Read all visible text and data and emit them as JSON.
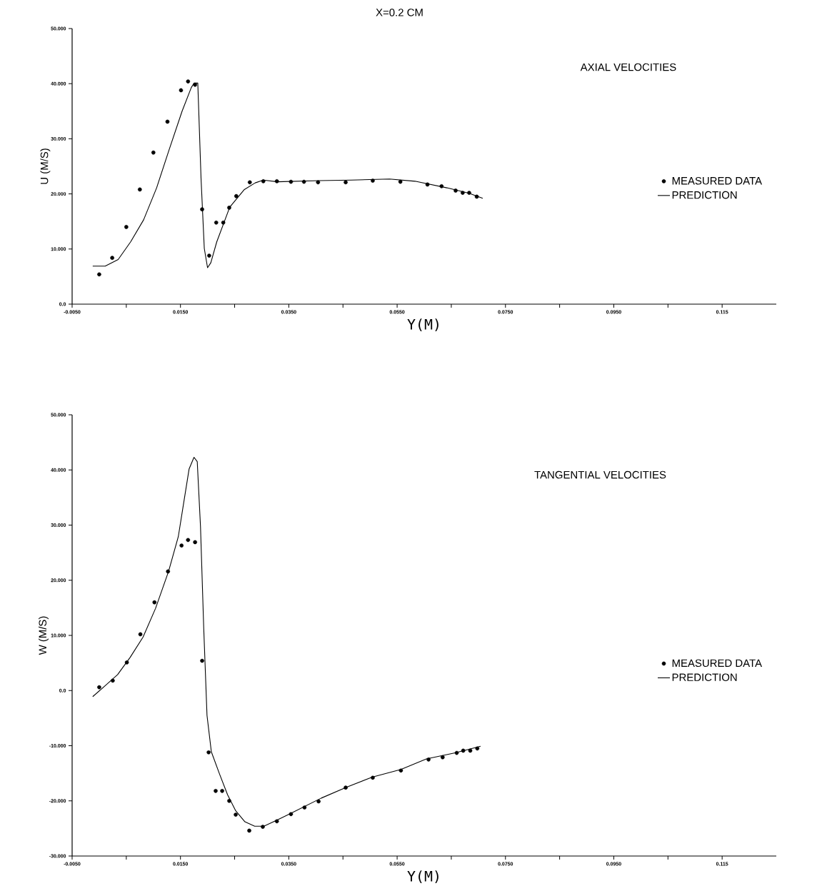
{
  "chart_data": [
    {
      "type": "line",
      "title": "X=0.2 CM",
      "xlabel": "Y(M)",
      "ylabel": "U (M/S)",
      "annotations": [
        "AXIAL VELOCITIES"
      ],
      "legend": "right",
      "xlim": [
        -0.005,
        0.125
      ],
      "ylim": [
        0,
        50
      ],
      "xticks": [
        {
          "value": -0.005,
          "label": "-0.0050"
        },
        {
          "value": 0.005,
          "label": null
        },
        {
          "value": 0.015,
          "label": "0.0150"
        },
        {
          "value": 0.025,
          "label": null
        },
        {
          "value": 0.035,
          "label": "0.0350"
        },
        {
          "value": 0.045,
          "label": null
        },
        {
          "value": 0.055,
          "label": "0.0550"
        },
        {
          "value": 0.065,
          "label": null
        },
        {
          "value": 0.075,
          "label": "0.0750"
        },
        {
          "value": 0.085,
          "label": null
        },
        {
          "value": 0.095,
          "label": "0.0950"
        },
        {
          "value": 0.105,
          "label": null
        },
        {
          "value": 0.115,
          "label": "0.115"
        }
      ],
      "yticks": [
        {
          "value": 0,
          "label": "0.0"
        },
        {
          "value": 10,
          "label": "10.000"
        },
        {
          "value": 20,
          "label": "20.000"
        },
        {
          "value": 30,
          "label": "30.000"
        },
        {
          "value": 40,
          "label": "40.000"
        },
        {
          "value": 50,
          "label": "50.000"
        }
      ],
      "series": [
        {
          "name": "MEASURED DATA",
          "type": "scatter",
          "marker": "circle",
          "color": "#000000",
          "x": [
            0.0,
            0.0024,
            0.005,
            0.0075,
            0.01,
            0.0126,
            0.0151,
            0.0164,
            0.0177,
            0.019,
            0.0203,
            0.0216,
            0.0229,
            0.024,
            0.0253,
            0.0278,
            0.0303,
            0.0328,
            0.0354,
            0.0378,
            0.0404,
            0.0455,
            0.0505,
            0.0556,
            0.0606,
            0.0632,
            0.0658,
            0.0671,
            0.0683,
            0.0697
          ],
          "values": [
            5.4,
            8.4,
            14.0,
            20.8,
            27.5,
            33.1,
            38.8,
            40.4,
            39.8,
            17.2,
            8.8,
            14.8,
            14.8,
            17.5,
            19.6,
            22.1,
            22.3,
            22.3,
            22.2,
            22.2,
            22.1,
            22.1,
            22.4,
            22.2,
            21.7,
            21.4,
            20.6,
            20.2,
            20.2,
            19.5
          ]
        },
        {
          "name": "PREDICTION",
          "type": "line",
          "color": "#000000",
          "x": [
            -0.0012,
            0.0011,
            0.0035,
            0.0058,
            0.0082,
            0.0106,
            0.0129,
            0.0153,
            0.017,
            0.0175,
            0.0182,
            0.0188,
            0.0194,
            0.02,
            0.0206,
            0.0217,
            0.0241,
            0.0268,
            0.0288,
            0.0303,
            0.0329,
            0.0406,
            0.0465,
            0.0536,
            0.0583,
            0.0642,
            0.0683,
            0.0708
          ],
          "values": [
            6.9,
            6.9,
            8.1,
            11.3,
            15.3,
            21.1,
            28.0,
            35.0,
            39.3,
            40.1,
            40.1,
            22.8,
            10.1,
            6.6,
            7.5,
            11.3,
            17.6,
            20.8,
            22.0,
            22.5,
            22.2,
            22.4,
            22.5,
            22.7,
            22.3,
            21.1,
            20.1,
            19.2
          ]
        }
      ]
    },
    {
      "type": "line",
      "xlabel": "Y(M)",
      "ylabel": "W (M/S)",
      "annotations": [
        "TANGENTIAL VELOCITIES"
      ],
      "legend": "right",
      "xlim": [
        -0.005,
        0.125
      ],
      "ylim": [
        -30,
        50
      ],
      "xticks": [
        {
          "value": -0.005,
          "label": "-0.0050"
        },
        {
          "value": 0.005,
          "label": null
        },
        {
          "value": 0.015,
          "label": "0.0150"
        },
        {
          "value": 0.025,
          "label": null
        },
        {
          "value": 0.035,
          "label": "0.0350"
        },
        {
          "value": 0.045,
          "label": null
        },
        {
          "value": 0.055,
          "label": "0.0550"
        },
        {
          "value": 0.065,
          "label": null
        },
        {
          "value": 0.075,
          "label": "0.0750"
        },
        {
          "value": 0.085,
          "label": null
        },
        {
          "value": 0.095,
          "label": "0.0950"
        },
        {
          "value": 0.105,
          "label": null
        },
        {
          "value": 0.115,
          "label": "0.115"
        }
      ],
      "yticks": [
        {
          "value": -30,
          "label": "-30.000"
        },
        {
          "value": -20,
          "label": "-20.000"
        },
        {
          "value": -10,
          "label": "-10.000"
        },
        {
          "value": 0,
          "label": "0.0"
        },
        {
          "value": 10,
          "label": "10.000"
        },
        {
          "value": 20,
          "label": "20.000"
        },
        {
          "value": 30,
          "label": "30.000"
        },
        {
          "value": 40,
          "label": "40.000"
        },
        {
          "value": 50,
          "label": "50.000"
        }
      ],
      "series": [
        {
          "name": "MEASURED DATA",
          "type": "scatter",
          "marker": "circle",
          "color": "#000000",
          "x": [
            0.0,
            0.0025,
            0.0051,
            0.0076,
            0.0102,
            0.0127,
            0.0152,
            0.0164,
            0.0177,
            0.019,
            0.0202,
            0.0215,
            0.0227,
            0.024,
            0.0252,
            0.0277,
            0.0302,
            0.0328,
            0.0354,
            0.0379,
            0.0405,
            0.0455,
            0.0505,
            0.0557,
            0.0608,
            0.0634,
            0.066,
            0.0672,
            0.0685,
            0.0698
          ],
          "values": [
            0.6,
            1.8,
            5.1,
            10.2,
            16.0,
            21.6,
            26.3,
            27.3,
            26.9,
            5.4,
            -11.2,
            -18.2,
            -18.2,
            -20.0,
            -22.5,
            -25.4,
            -24.7,
            -23.7,
            -22.4,
            -21.2,
            -20.1,
            -17.6,
            -15.8,
            -14.5,
            -12.5,
            -12.1,
            -11.3,
            -10.9,
            -10.9,
            -10.5
          ]
        },
        {
          "name": "PREDICTION",
          "type": "line",
          "color": "#000000",
          "x": [
            -0.0012,
            0.001,
            0.0034,
            0.0057,
            0.0081,
            0.0104,
            0.0128,
            0.0146,
            0.0166,
            0.0175,
            0.0181,
            0.0187,
            0.0193,
            0.0199,
            0.0207,
            0.0222,
            0.0237,
            0.0252,
            0.0269,
            0.0287,
            0.0304,
            0.0328,
            0.0351,
            0.041,
            0.0457,
            0.0504,
            0.0557,
            0.0604,
            0.0657,
            0.0704
          ],
          "values": [
            -1.1,
            0.8,
            2.9,
            6.0,
            9.7,
            14.9,
            21.6,
            27.9,
            40.2,
            42.3,
            41.5,
            29.7,
            11.2,
            -4.5,
            -11.1,
            -15.1,
            -18.9,
            -21.8,
            -23.8,
            -24.6,
            -24.6,
            -23.5,
            -22.4,
            -19.5,
            -17.5,
            -15.7,
            -14.3,
            -12.4,
            -11.3,
            -10.1
          ]
        }
      ]
    }
  ]
}
